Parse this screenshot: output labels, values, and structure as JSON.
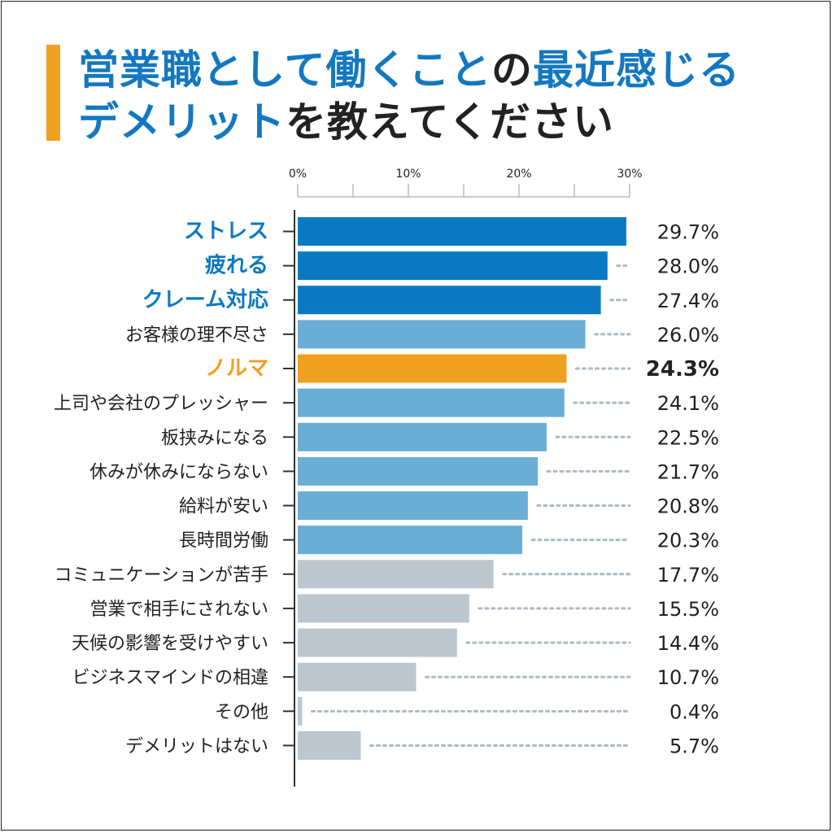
{
  "title": {
    "line1": [
      {
        "text": "営業職として働くこと",
        "color": "#1478c0"
      },
      {
        "text": "の",
        "color": "#222222"
      },
      {
        "text": "最近感じる",
        "color": "#1478c0"
      }
    ],
    "line2": [
      {
        "text": "デメリット",
        "color": "#1478c0"
      },
      {
        "text": "を教えてください",
        "color": "#222222"
      }
    ]
  },
  "colors": {
    "accent_bar": "#f0a020",
    "title_blue": "#1478c0",
    "text_dark": "#222222",
    "top_blue": "#0a79c2",
    "mid_blue": "#6aaed6",
    "gray": "#bcc7cf",
    "orange": "#f0a020",
    "leader": "#aeb9c2",
    "axis": "#555555"
  },
  "chart_data": {
    "type": "bar",
    "orientation": "horizontal",
    "title": "営業職として働くことの最近感じるデメリットを教えてください",
    "xlim": [
      0,
      30
    ],
    "ticks": [
      0,
      10,
      20,
      30
    ],
    "tick_labels": [
      "0%",
      "10%",
      "20%",
      "30%"
    ],
    "unit": "%",
    "categories": [
      "ストレス",
      "疲れる",
      "クレーム対応",
      "お客様の理不尽さ",
      "ノルマ",
      "上司や会社のプレッシャー",
      "板挟みになる",
      "休みが休みにならない",
      "給料が安い",
      "長時間労働",
      "コミュニケーションが苦手",
      "営業で相手にされない",
      "天候の影響を受けやすい",
      "ビジネスマインドの相違",
      "その他",
      "デメリットはない"
    ],
    "values": [
      29.7,
      28.0,
      27.4,
      26.0,
      24.3,
      24.1,
      22.5,
      21.7,
      20.8,
      20.3,
      17.7,
      15.5,
      14.4,
      10.7,
      0.4,
      5.7
    ],
    "value_labels": [
      "29.7%",
      "28.0%",
      "27.4%",
      "26.0%",
      "24.3%",
      "24.1%",
      "22.5%",
      "21.7%",
      "20.8%",
      "20.3%",
      "17.7%",
      "15.5%",
      "14.4%",
      "10.7%",
      "0.4%",
      "5.7%"
    ],
    "groups": [
      "top",
      "top",
      "top",
      "mid",
      "highlight",
      "mid",
      "mid",
      "mid",
      "mid",
      "mid",
      "low",
      "low",
      "low",
      "low",
      "low",
      "low"
    ]
  }
}
